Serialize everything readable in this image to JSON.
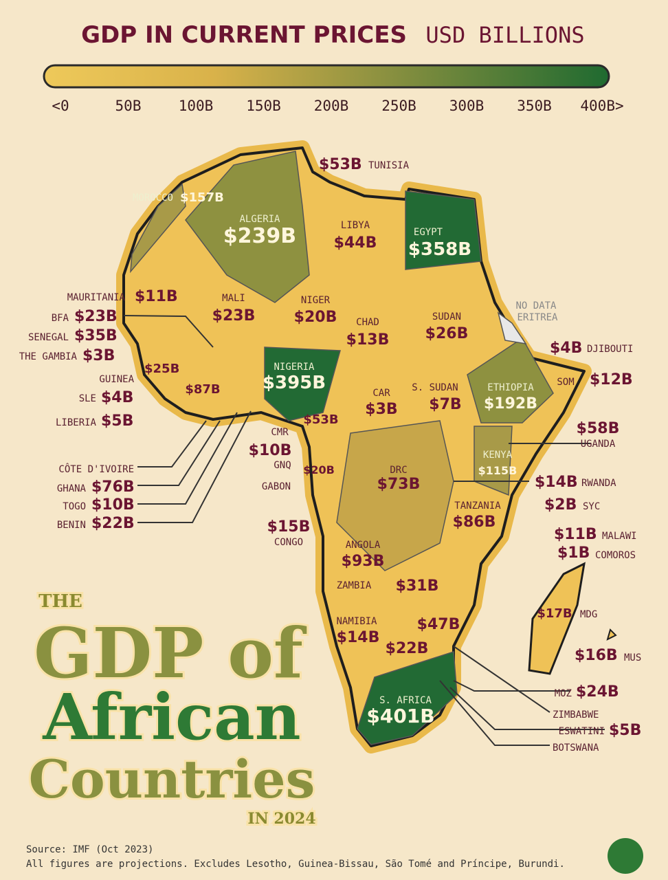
{
  "header": {
    "title": "GDP IN CURRENT PRICES",
    "unit": "USD BILLIONS"
  },
  "legend": {
    "ticks": [
      "<0",
      "50B",
      "100B",
      "150B",
      "200B",
      "250B",
      "300B",
      "350B",
      "400B>"
    ]
  },
  "countries": [
    {
      "name": "TUNISIA",
      "value": "$53B"
    },
    {
      "name": "MOROCCO",
      "value": "$157B"
    },
    {
      "name": "ALGERIA",
      "value": "$239B"
    },
    {
      "name": "LIBYA",
      "value": "$44B"
    },
    {
      "name": "EGYPT",
      "value": "$358B"
    },
    {
      "name": "MAURITANIA",
      "value": "$11B"
    },
    {
      "name": "MALI",
      "value": "$23B"
    },
    {
      "name": "NIGER",
      "value": "$20B"
    },
    {
      "name": "CHAD",
      "value": "$13B"
    },
    {
      "name": "SUDAN",
      "value": "$26B"
    },
    {
      "name": "ERITREA",
      "value": "NO DATA"
    },
    {
      "name": "BFA",
      "value": "$23B"
    },
    {
      "name": "SENEGAL",
      "value": "$35B"
    },
    {
      "name": "THE GAMBIA",
      "value": "$3B"
    },
    {
      "name": "DJIBOUTI",
      "value": "$4B"
    },
    {
      "name": "GUINEA",
      "value": "$25B"
    },
    {
      "name": "NIGERIA",
      "value": "$395B"
    },
    {
      "name": "SOM",
      "value": "$12B"
    },
    {
      "name": "ETHIOPIA",
      "value": "$192B"
    },
    {
      "name": "S. SUDAN",
      "value": "$7B"
    },
    {
      "name": "CAR",
      "value": "$3B"
    },
    {
      "name": "SLE",
      "value": "$4B"
    },
    {
      "name": "LIBERIA",
      "value": "$5B"
    },
    {
      "name": "CÔTE D'IVOIRE",
      "value": "$87B"
    },
    {
      "name": "GHANA",
      "value": "$76B"
    },
    {
      "name": "TOGO",
      "value": "$10B"
    },
    {
      "name": "BENIN",
      "value": "$22B"
    },
    {
      "name": "CMR",
      "value": "$53B"
    },
    {
      "name": "GNQ",
      "value": "$10B"
    },
    {
      "name": "GABON",
      "value": "$20B"
    },
    {
      "name": "UGANDA",
      "value": "$58B"
    },
    {
      "name": "KENYA",
      "value": "$115B"
    },
    {
      "name": "DRC",
      "value": "$73B"
    },
    {
      "name": "RWANDA",
      "value": "$14B"
    },
    {
      "name": "SYC",
      "value": "$2B"
    },
    {
      "name": "TANZANIA",
      "value": "$86B"
    },
    {
      "name": "CONGO",
      "value": "$15B"
    },
    {
      "name": "ANGOLA",
      "value": "$93B"
    },
    {
      "name": "MALAWI",
      "value": "$11B"
    },
    {
      "name": "COMOROS",
      "value": "$1B"
    },
    {
      "name": "ZAMBIA",
      "value": "$31B"
    },
    {
      "name": "MDG",
      "value": "$17B"
    },
    {
      "name": "NAMIBIA",
      "value": "$14B"
    },
    {
      "name": "ZIMBABWE",
      "value": "$47B"
    },
    {
      "name": "BOTSWANA",
      "value": "$22B"
    },
    {
      "name": "MUS",
      "value": "$16B"
    },
    {
      "name": "MOZ",
      "value": "$24B"
    },
    {
      "name": "S. AFRICA",
      "value": "$401B"
    },
    {
      "name": "ESWATINI",
      "value": "$5B"
    }
  ],
  "big_title": {
    "line1": "THE",
    "line2": "GDP of",
    "line3": "African",
    "line4": "Countries",
    "line5": "IN 2024"
  },
  "footer": {
    "source": "Source: IMF (Oct 2023)",
    "note": "All figures are projections. Excludes Lesotho, Guinea-Bissau, São Tomé and Príncipe, Burundi."
  }
}
